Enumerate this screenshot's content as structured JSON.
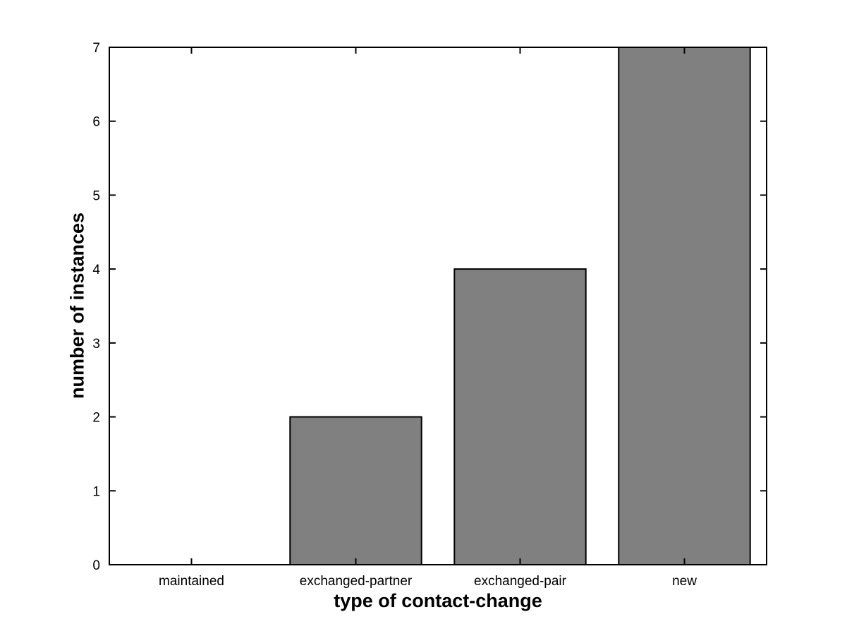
{
  "chart_data": {
    "type": "bar",
    "title": "",
    "xlabel": "type of contact-change",
    "ylabel": "number of instances",
    "categories": [
      "maintained",
      "exchanged-partner",
      "exchanged-pair",
      "new"
    ],
    "values": [
      0,
      2,
      4,
      7
    ],
    "ylim": [
      0,
      7
    ],
    "yticks": [
      0,
      1,
      2,
      3,
      4,
      5,
      6,
      7
    ],
    "bar_width_fraction": 0.8,
    "bar_fill": "#808080",
    "bar_edge": "#000000",
    "axis_color": "#000000",
    "tick_label_color": "#000000",
    "background_color": "#ffffff",
    "grid": "off",
    "legend": "none",
    "tick_direction": "in",
    "box": "on"
  }
}
